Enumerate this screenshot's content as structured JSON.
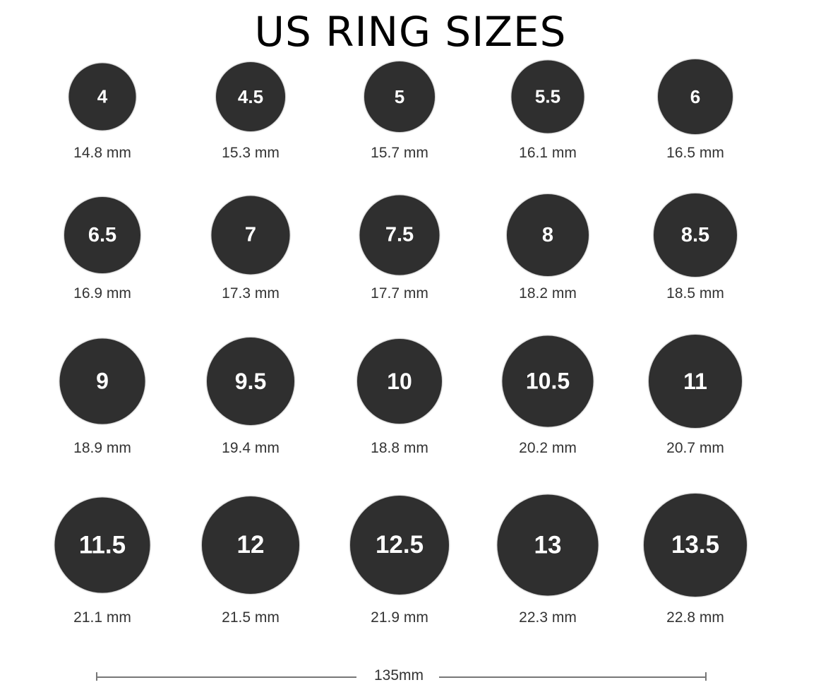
{
  "title": "US RING SIZES",
  "rings": [
    {
      "size": "4",
      "diameter": "14.8 mm"
    },
    {
      "size": "4.5",
      "diameter": "15.3 mm"
    },
    {
      "size": "5",
      "diameter": "15.7 mm"
    },
    {
      "size": "5.5",
      "diameter": "16.1 mm"
    },
    {
      "size": "6",
      "diameter": "16.5 mm"
    },
    {
      "size": "6.5",
      "diameter": "16.9 mm"
    },
    {
      "size": "7",
      "diameter": "17.3 mm"
    },
    {
      "size": "7.5",
      "diameter": "17.7 mm"
    },
    {
      "size": "8",
      "diameter": "18.2 mm"
    },
    {
      "size": "8.5",
      "diameter": "18.5 mm"
    },
    {
      "size": "9",
      "diameter": "18.9 mm"
    },
    {
      "size": "9.5",
      "diameter": "19.4 mm"
    },
    {
      "size": "10",
      "diameter": "18.8 mm"
    },
    {
      "size": "10.5",
      "diameter": "20.2 mm"
    },
    {
      "size": "11",
      "diameter": "20.7 mm"
    },
    {
      "size": "11.5",
      "diameter": "21.1 mm"
    },
    {
      "size": "12",
      "diameter": "21.5 mm"
    },
    {
      "size": "12.5",
      "diameter": "21.9 mm"
    },
    {
      "size": "13",
      "diameter": "22.3 mm"
    },
    {
      "size": "13.5",
      "diameter": "22.8 mm"
    }
  ],
  "scale_label": "135mm",
  "colors": {
    "circle": "#2f2f2f",
    "text": "#333333"
  }
}
